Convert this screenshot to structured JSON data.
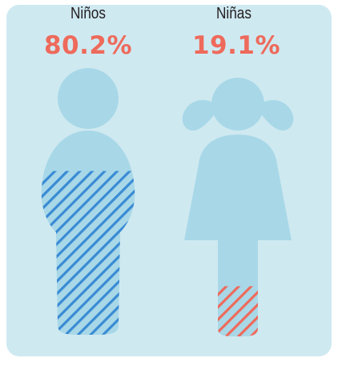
{
  "chart_data": {
    "type": "pictograph",
    "categories": [
      "Niños",
      "Niñas"
    ],
    "values": [
      80.2,
      19.1
    ],
    "value_labels": [
      "80.2%",
      "19.1%"
    ],
    "unit": "%"
  },
  "colors": {
    "panel_background": "#cfe9f1",
    "figure_fill": "#a8d8e8",
    "boy_hatch": "#3a8bd4",
    "girl_hatch": "#ee6a5b",
    "value_text": "#ee6a5b",
    "label_text": "#231f20"
  }
}
